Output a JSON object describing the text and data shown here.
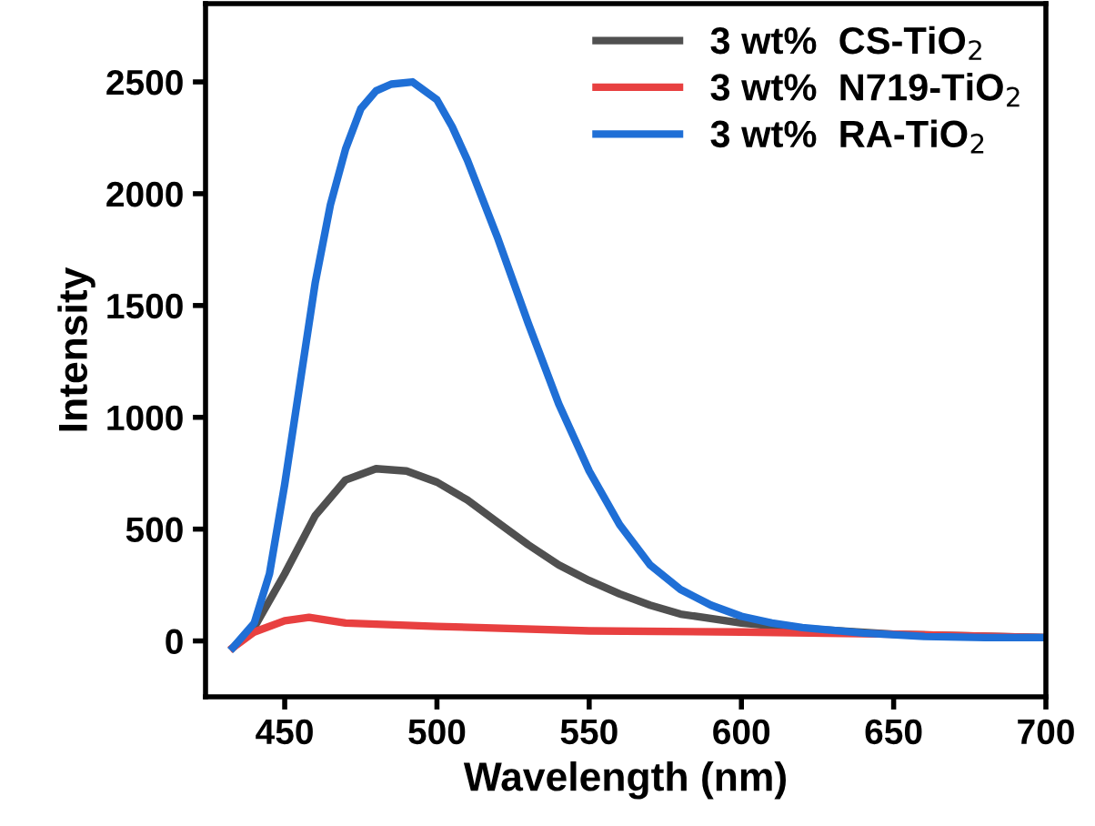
{
  "chart_data": {
    "type": "line",
    "xlabel": "Wavelength (nm)",
    "ylabel": "Intensity",
    "xlim": [
      424,
      700
    ],
    "ylim": [
      -250,
      2850
    ],
    "xticks": [
      450,
      500,
      550,
      600,
      650,
      700
    ],
    "yticks": [
      0,
      500,
      1000,
      1500,
      2000,
      2500
    ],
    "grid": false,
    "legend": "top right",
    "marker": "none",
    "line_style": "solid",
    "series": [
      {
        "name": "3 wt%  CS-TiO$_{2}$",
        "color": "#505050",
        "x": [
          433,
          440,
          450,
          460,
          470,
          480,
          490,
          500,
          510,
          520,
          530,
          540,
          550,
          560,
          570,
          580,
          600,
          620,
          650,
          700
        ],
        "values": [
          -30,
          60,
          300,
          560,
          720,
          770,
          760,
          710,
          630,
          530,
          430,
          340,
          270,
          210,
          160,
          120,
          80,
          55,
          30,
          15
        ]
      },
      {
        "name": "3 wt%  N719-TiO$_{2}$",
        "color": "#e84040",
        "x": [
          433,
          440,
          450,
          458,
          470,
          500,
          550,
          600,
          650,
          700
        ],
        "values": [
          -30,
          40,
          90,
          105,
          80,
          65,
          45,
          40,
          30,
          15
        ]
      },
      {
        "name": "3 wt%  RA-TiO$_{2}$",
        "color": "#1f6fd6",
        "x": [
          433,
          440,
          445,
          450,
          455,
          460,
          465,
          470,
          475,
          480,
          485,
          492,
          500,
          505,
          510,
          520,
          530,
          540,
          550,
          560,
          570,
          580,
          590,
          600,
          610,
          620,
          640,
          660,
          680,
          700
        ],
        "values": [
          -30,
          80,
          300,
          700,
          1150,
          1600,
          1950,
          2200,
          2380,
          2460,
          2490,
          2500,
          2420,
          2300,
          2150,
          1800,
          1420,
          1060,
          760,
          520,
          340,
          230,
          160,
          110,
          80,
          60,
          35,
          20,
          15,
          15
        ]
      }
    ]
  }
}
